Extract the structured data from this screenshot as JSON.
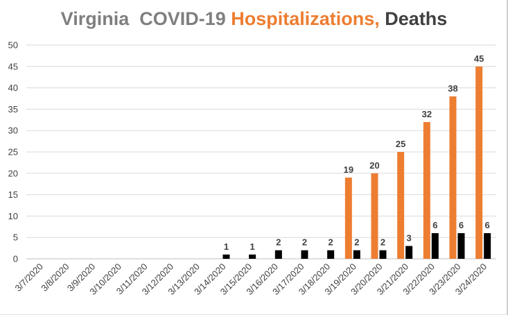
{
  "title": {
    "part1": "Virginia  COVID-19 ",
    "part2": "Hospitalizations,",
    "part3": " Deaths"
  },
  "colors": {
    "title_gray": "#7f7f7f",
    "title_orange": "#ed7d31",
    "title_dark": "#404040",
    "hospitalizations": "#ed7d31",
    "deaths": "#000000",
    "grid": "#d9d9d9"
  },
  "chart_data": {
    "type": "bar",
    "title": "Virginia  COVID-19 Hospitalizations, Deaths",
    "categories": [
      "3/7/2020",
      "3/8/2020",
      "3/9/2020",
      "3/10/2020",
      "3/11/2020",
      "3/12/2020",
      "3/13/2020",
      "3/14/2020",
      "3/15/2020",
      "3/16/2020",
      "3/17/2020",
      "3/18/2020",
      "3/19/2020",
      "3/20/2020",
      "3/21/2020",
      "3/22/2020",
      "3/23/2020",
      "3/24/2020"
    ],
    "series": [
      {
        "name": "Hospitalizations",
        "color": "#ed7d31",
        "values": [
          null,
          null,
          null,
          null,
          null,
          null,
          null,
          null,
          null,
          null,
          null,
          null,
          19,
          20,
          25,
          32,
          38,
          45
        ]
      },
      {
        "name": "Deaths",
        "color": "#000000",
        "values": [
          null,
          null,
          null,
          null,
          null,
          null,
          null,
          1,
          1,
          2,
          2,
          2,
          2,
          2,
          3,
          6,
          6,
          6
        ]
      }
    ],
    "ylim": [
      0,
      50
    ],
    "yticks": [
      0,
      5,
      10,
      15,
      20,
      25,
      30,
      35,
      40,
      45,
      50
    ],
    "grid": true,
    "legend": "none",
    "data_labels": true,
    "xlabel": "",
    "ylabel": ""
  }
}
